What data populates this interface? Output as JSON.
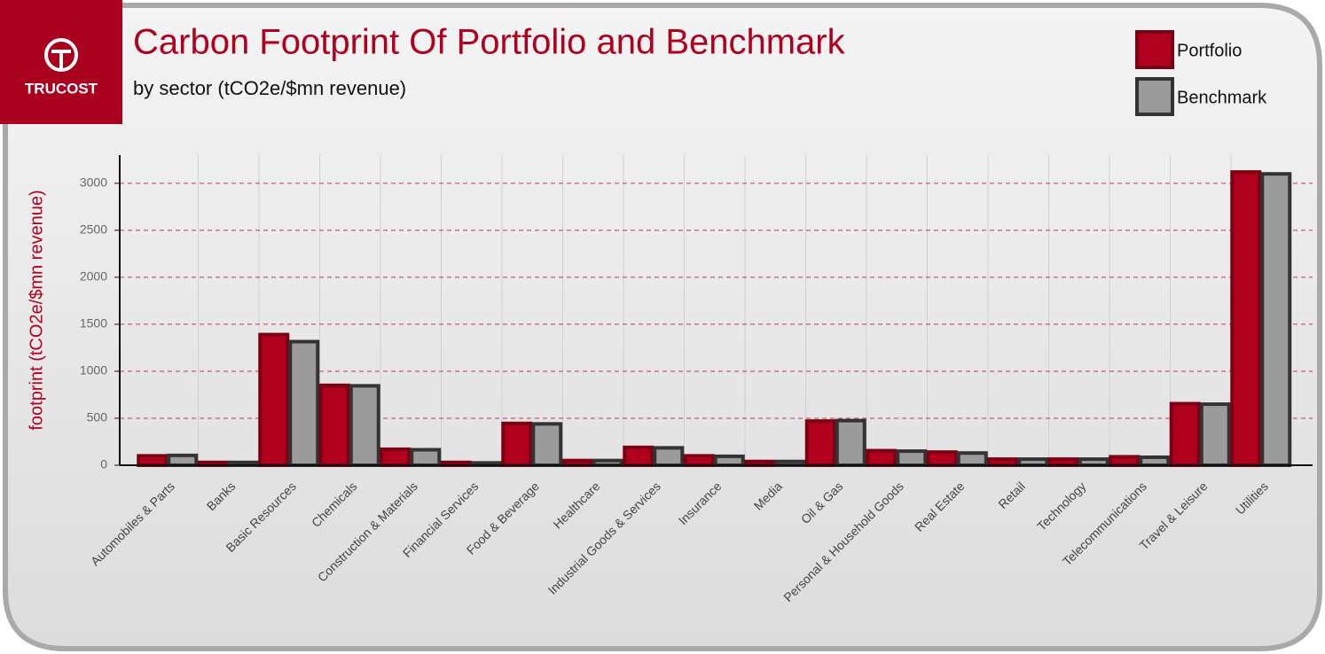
{
  "logo": "TRUCOST",
  "chart_data": {
    "type": "bar",
    "title": "Carbon Footprint Of Portfolio and Benchmark",
    "subtitle": "by sector (tCO2e/$mn revenue)",
    "y_label": "footprint (tCO2e/$mn revenue)",
    "categories": [
      "Automobiles & Parts",
      "Banks",
      "Basic Resources",
      "Chemicals",
      "Construction & Materials",
      "Financial Services",
      "Food & Beverage",
      "Healthcare",
      "Industrial Goods & Services",
      "Insurance",
      "Media",
      "Oil & Gas",
      "Personal & Household Goods",
      "Real Estate",
      "Retail",
      "Technology",
      "Telecommunications",
      "Travel & Leisure",
      "Utilities"
    ],
    "series": [
      {
        "name": "Portfolio",
        "color": "#b0001e",
        "stroke": "#7a0012",
        "values": [
          100,
          30,
          1390,
          850,
          170,
          30,
          445,
          50,
          190,
          100,
          40,
          470,
          155,
          140,
          65,
          65,
          90,
          655,
          3120
        ]
      },
      {
        "name": "Benchmark",
        "color": "#9b9b9b",
        "stroke": "#333333",
        "values": [
          105,
          30,
          1315,
          845,
          165,
          25,
          440,
          50,
          185,
          95,
          40,
          475,
          150,
          130,
          65,
          65,
          85,
          650,
          3100
        ]
      }
    ],
    "ylim": [
      0,
      3300
    ],
    "yticks": [
      0,
      500,
      1000,
      1500,
      2000,
      2500,
      3000
    ],
    "grid": true,
    "legend": "top-right"
  }
}
